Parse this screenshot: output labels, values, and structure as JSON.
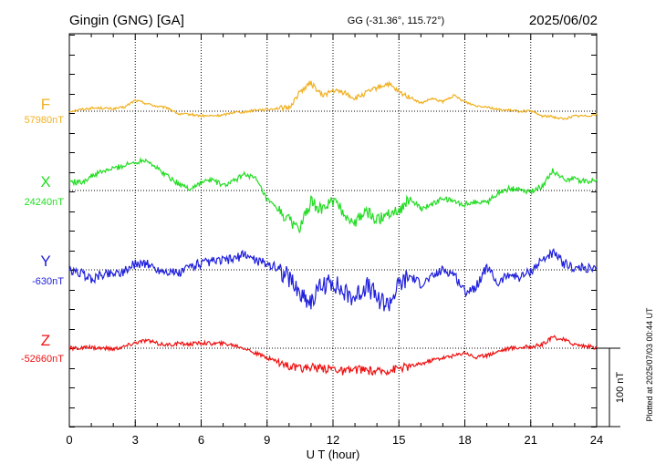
{
  "header": {
    "title": "Gingin (GNG)  [GA]",
    "coords": "GG (-31.36°, 115.72°)",
    "date": "2025/06/02"
  },
  "side_note": "Plotted at 2025/07/03 00:44 UT",
  "chart_data": {
    "type": "line",
    "xlabel": "U T (hour)",
    "xlim": [
      0,
      24
    ],
    "x_ticks": [
      "0",
      "3",
      "6",
      "9",
      "12",
      "15",
      "18",
      "21",
      "24"
    ],
    "scale_bar_label": "100 nT",
    "scale_bar_nT": 100,
    "series": [
      {
        "name": "F",
        "baseline_label": "57980nT",
        "baseline_nT": 57980,
        "color": "#f0b020",
        "hours": [
          0,
          0.5,
          1,
          1.5,
          2,
          2.5,
          3,
          3.5,
          4,
          4.5,
          5,
          5.5,
          6,
          6.5,
          7,
          7.5,
          8,
          8.5,
          9,
          9.5,
          10,
          10.5,
          11,
          11.5,
          12,
          12.5,
          13,
          13.5,
          14,
          14.5,
          15,
          15.5,
          16,
          16.5,
          17,
          17.5,
          18,
          18.5,
          19,
          19.5,
          20,
          20.5,
          21,
          21.5,
          22,
          22.5,
          23,
          23.5,
          24
        ],
        "deviation_nT": [
          0,
          2,
          4,
          4,
          3,
          5,
          14,
          10,
          6,
          4,
          -4,
          -4,
          -6,
          -6,
          -5,
          -1,
          -1,
          2,
          2,
          4,
          4,
          25,
          36,
          20,
          26,
          24,
          16,
          23,
          30,
          35,
          24,
          18,
          10,
          16,
          12,
          20,
          12,
          7,
          6,
          2,
          1,
          0,
          0,
          -6,
          -7,
          -10,
          -6,
          -6,
          -4
        ]
      },
      {
        "name": "X",
        "baseline_label": "24240nT",
        "baseline_nT": 24240,
        "color": "#22dd22",
        "hours": [
          0,
          0.5,
          1,
          1.5,
          2,
          2.5,
          3,
          3.5,
          4,
          4.5,
          5,
          5.5,
          6,
          6.5,
          7,
          7.5,
          8,
          8.5,
          9,
          9.5,
          10,
          10.5,
          11,
          11.5,
          12,
          12.5,
          13,
          13.5,
          14,
          14.5,
          15,
          15.5,
          16,
          16.5,
          17,
          17.5,
          18,
          18.5,
          19,
          19.5,
          20,
          20.5,
          21,
          21.5,
          22,
          22.5,
          23,
          23.5,
          24
        ],
        "deviation_nT": [
          12,
          10,
          18,
          24,
          28,
          32,
          36,
          40,
          28,
          18,
          8,
          2,
          10,
          14,
          6,
          12,
          22,
          14,
          -12,
          -25,
          -38,
          -48,
          -15,
          -25,
          -12,
          -30,
          -42,
          -26,
          -38,
          -28,
          -25,
          -10,
          -24,
          -18,
          -10,
          -14,
          -18,
          -14,
          -15,
          -3,
          2,
          2,
          -2,
          5,
          25,
          15,
          14,
          12,
          12
        ]
      },
      {
        "name": "Y",
        "baseline_label": "-630nT",
        "baseline_nT": -630,
        "color": "#2020dd",
        "hours": [
          0,
          0.5,
          1,
          1.5,
          2,
          2.5,
          3,
          3.5,
          4,
          4.5,
          5,
          5.5,
          6,
          6.5,
          7,
          7.5,
          8,
          8.5,
          9,
          9.5,
          10,
          10.5,
          11,
          11.5,
          12,
          12.5,
          13,
          13.5,
          14,
          14.5,
          15,
          15.5,
          16,
          16.5,
          17,
          17.5,
          18,
          18.5,
          19,
          19.5,
          20,
          20.5,
          21,
          21.5,
          22,
          22.5,
          23,
          23.5,
          24
        ],
        "deviation_nT": [
          -2,
          -4,
          -12,
          -6,
          -4,
          -2,
          8,
          8,
          0,
          -2,
          -5,
          5,
          8,
          10,
          12,
          14,
          20,
          12,
          8,
          2,
          -10,
          -30,
          -40,
          -20,
          -15,
          -30,
          -35,
          -20,
          -35,
          -45,
          -20,
          -8,
          -18,
          -10,
          0,
          -5,
          -28,
          -22,
          4,
          -18,
          -5,
          -10,
          -2,
          12,
          22,
          8,
          2,
          2,
          0
        ]
      },
      {
        "name": "Z",
        "baseline_label": "-52660nT",
        "baseline_nT": -52660,
        "color": "#ee1111",
        "hours": [
          0,
          0.5,
          1,
          1.5,
          2,
          2.5,
          3,
          3.5,
          4,
          4.5,
          5,
          5.5,
          6,
          6.5,
          7,
          7.5,
          8,
          8.5,
          9,
          9.5,
          10,
          10.5,
          11,
          11.5,
          12,
          12.5,
          13,
          13.5,
          14,
          14.5,
          15,
          15.5,
          16,
          16.5,
          17,
          17.5,
          18,
          18.5,
          19,
          19.5,
          20,
          20.5,
          21,
          21.5,
          22,
          22.5,
          23,
          23.5,
          24
        ],
        "deviation_nT": [
          0,
          0,
          1,
          0,
          -1,
          2,
          7,
          10,
          6,
          4,
          6,
          5,
          7,
          6,
          6,
          4,
          0,
          -7,
          -12,
          -17,
          -23,
          -27,
          -23,
          -27,
          -25,
          -30,
          -27,
          -28,
          -30,
          -28,
          -25,
          -23,
          -20,
          -15,
          -12,
          -10,
          -5,
          -12,
          -9,
          -4,
          0,
          1,
          2,
          4,
          14,
          11,
          5,
          3,
          0
        ]
      }
    ]
  }
}
